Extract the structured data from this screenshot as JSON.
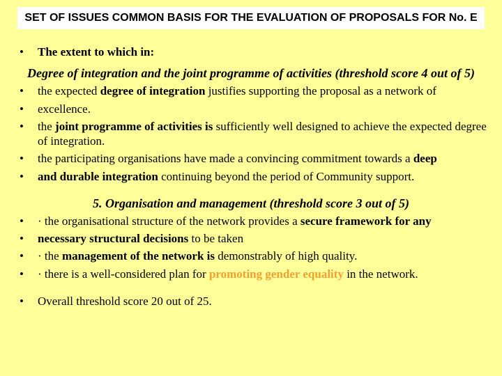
{
  "colors": {
    "background": "#ffff99",
    "title_bg": "#ffffff",
    "text": "#000000",
    "highlight": "#f0a030"
  },
  "typography": {
    "body_family": "Times New Roman",
    "title_family": "Arial",
    "title_size_pt": 16,
    "body_size_pt": 17,
    "heading_size_pt": 18
  },
  "title": "SET OF ISSUES COMMON BASIS FOR THE EVALUATION OF PROPOSALS FOR No. E",
  "lead_bullet": "•",
  "lead_text": "The extent to which in:",
  "section1": {
    "heading": "Degree of integration and the joint programme of activities (threshold score 4 out of 5)",
    "items": [
      {
        "pre": "the expected ",
        "b1": "degree of integration",
        "post": " justifies supporting the proposal as a network of"
      },
      {
        "plain": "excellence."
      },
      {
        "pre": "the ",
        "b1": "joint programme of activities is",
        "post": " sufficiently well designed to achieve the expected degree of integration."
      },
      {
        "pre": "the participating organisations have made a convincing commitment towards a ",
        "b1": "deep",
        "post": ""
      },
      {
        "pre": "",
        "b1": "and durable integration",
        "post": " continuing beyond the period of Community support."
      }
    ]
  },
  "section2": {
    "heading": "5. Organisation and management (threshold score 3 out of 5)",
    "items": [
      {
        "pre": "· the organisational structure of the network provides a ",
        "b1": "secure framework for any",
        "post": ""
      },
      {
        "pre": "",
        "b1": "necessary structural decisions",
        "post": " to be taken"
      },
      {
        "pre": "· the ",
        "b1": "management of the network is",
        "post": " demonstrably of high quality."
      },
      {
        "pre": "· there is a well-considered plan for ",
        "hl": "promoting gender equality",
        "post": " in the network."
      }
    ]
  },
  "closing": "Overall threshold score 20 out of 25."
}
